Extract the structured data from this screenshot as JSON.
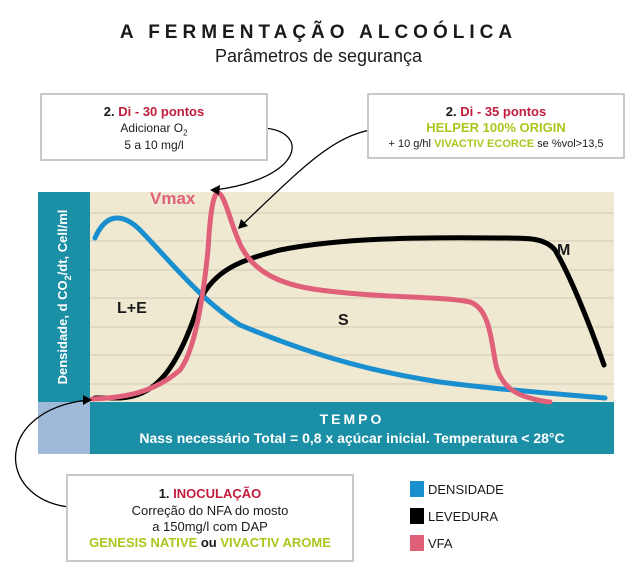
{
  "header": {
    "title": "A FERMENTAÇÃO ALCOÓLICA",
    "subtitle": "Parâmetros de segurança"
  },
  "box_di30": {
    "step": "2. ",
    "di": "Di - ",
    "points": " 30 pontos",
    "line2_text": "Adicionar O",
    "line2_sub": "2",
    "line3": "5 a 10 mg/l"
  },
  "box_di35": {
    "step": "2. ",
    "di": "Di - ",
    "points": " 35 pontos",
    "product": "HELPER 100% ORIGIN",
    "line3_prefix": "+ 10 g/hl ",
    "line3_product": "VIVACTIV ECORCE",
    "line3_suffix": " se %vol>13,5"
  },
  "box_inoc": {
    "step": "1. ",
    "title": "INOCULAÇÃO",
    "line2": "Correção do NFA do mosto",
    "line3": "a 150mg/l com DAP",
    "product1": "GENESIS NATIVE",
    "connector": " ou ",
    "product2": "VIVACTIV AROME"
  },
  "axis": {
    "y_label_prefix": "Densidade, d CO",
    "y_label_sub": "2",
    "y_label_suffix": "/dt, Cell/ml",
    "x_title": "TEMPO",
    "footnote": "Nass necessário Total = 0,8 x açúcar inicial. Temperatura < 28°C"
  },
  "curve_labels": {
    "vmax": "Vmax",
    "le": "L+E",
    "s": "S",
    "m": "M"
  },
  "legend": [
    {
      "label": "DENSIDADE",
      "color": "#1a8fd0"
    },
    {
      "label": "LEVEDURA",
      "color": "#000000"
    },
    {
      "label": "VFA",
      "color": "#e0607a"
    }
  ],
  "colors": {
    "panel": "#efe9d2",
    "bar": "#1a8fa6",
    "accent_red": "#c21d3c",
    "accent_green": "#a8c81e"
  }
}
